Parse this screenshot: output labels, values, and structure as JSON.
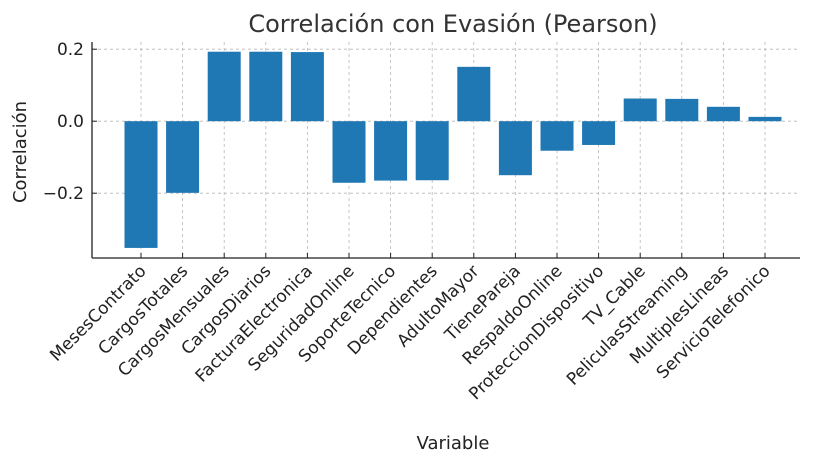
{
  "chart_data": {
    "type": "bar",
    "title": "Correlación con Evasión (Pearson)",
    "xlabel": "Variable",
    "ylabel": "Correlación",
    "ylim": [
      -0.38,
      0.22
    ],
    "yticks": [
      0.2,
      0.0,
      -0.2
    ],
    "ytick_labels": [
      "0.2",
      "0.0",
      "−0.2"
    ],
    "grid": true,
    "bar_color": "#1f77b4",
    "categories": [
      "MesesContrato",
      "CargosTotales",
      "CargosMensuales",
      "CargosDiarios",
      "FacturaElectronica",
      "SeguridadOnline",
      "SoporteTecnico",
      "Dependientes",
      "AdultoMayor",
      "TienePareja",
      "RespaldoOnline",
      "ProteccionDispositivo",
      "TV_Cable",
      "PeliculasStreaming",
      "MultiplesLineas",
      "ServicioTelefonico"
    ],
    "values": [
      -0.352,
      -0.199,
      0.193,
      0.193,
      0.192,
      -0.171,
      -0.165,
      -0.164,
      0.151,
      -0.15,
      -0.082,
      -0.066,
      0.063,
      0.062,
      0.04,
      0.012
    ]
  }
}
